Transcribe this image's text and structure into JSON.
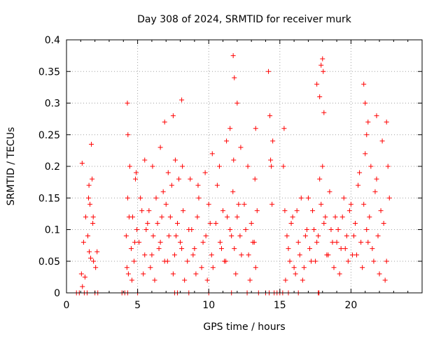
{
  "chart_data": {
    "type": "scatter",
    "title": "Day 308 of 2024, SRMTID for receiver murk",
    "xlabel": "GPS time / hours",
    "ylabel": "SRMTID / TECUs",
    "xlim": [
      0,
      25
    ],
    "ylim": [
      0,
      0.4
    ],
    "xticks": [
      0,
      5,
      10,
      15,
      20
    ],
    "yticks": [
      0,
      0.05,
      0.1,
      0.15,
      0.2,
      0.25,
      0.3,
      0.35,
      0.4
    ],
    "xtick_labels": [
      "0",
      "5",
      "10",
      "15",
      "20"
    ],
    "ytick_labels": [
      "0",
      "0.05",
      "0.1",
      "0.15",
      "0.2",
      "0.25",
      "0.3",
      "0.35",
      "0.4"
    ],
    "grid": true,
    "marker": "+",
    "series_color": "#ff0000",
    "series": [
      {
        "name": "SRMTID",
        "x": [
          1.05,
          1.1,
          1.2,
          1.35,
          1.5,
          1.55,
          1.6,
          1.65,
          1.75,
          1.8,
          1.85,
          1.9,
          2.05,
          2.15,
          1.12,
          1.3,
          1.58,
          1.7,
          1.88,
          4.2,
          4.3,
          4.35,
          4.45,
          4.55,
          4.65,
          4.75,
          4.85,
          4.95,
          5.1,
          5.3,
          5.5,
          5.7,
          5.9,
          6.1,
          6.3,
          6.5,
          6.7,
          6.9,
          7.0,
          7.2,
          7.4,
          7.6,
          7.8,
          8.0,
          8.2,
          8.5,
          8.8,
          9.0,
          9.2,
          9.5,
          9.8,
          10.0,
          10.2,
          10.5,
          10.8,
          11.0,
          11.2,
          11.5,
          11.7,
          11.8,
          12.0,
          12.2,
          12.5,
          12.8,
          13.0,
          13.2,
          13.4,
          4.25,
          4.4,
          4.6,
          4.8,
          5.2,
          5.4,
          5.6,
          5.8,
          6.0,
          6.2,
          6.4,
          6.6,
          6.8,
          7.1,
          7.3,
          7.5,
          7.7,
          7.9,
          8.1,
          8.3,
          8.6,
          8.9,
          9.1,
          9.3,
          9.6,
          9.9,
          10.1,
          10.3,
          10.6,
          10.9,
          11.1,
          11.3,
          11.6,
          11.9,
          12.1,
          12.3,
          12.6,
          12.9,
          13.1,
          13.3,
          4.32,
          4.9,
          5.5,
          6.05,
          6.6,
          7.15,
          7.65,
          8.15,
          8.7,
          9.25,
          9.75,
          10.25,
          10.75,
          11.25,
          11.75,
          12.25,
          12.75,
          13.25,
          4.28,
          6.9,
          7.5,
          8.1,
          11.5,
          11.72,
          11.8,
          12.0,
          13.3,
          14.2,
          14.3,
          14.4,
          14.5,
          15.3,
          15.5,
          15.7,
          15.9,
          16.1,
          16.3,
          16.5,
          16.7,
          16.9,
          17.1,
          17.3,
          17.5,
          17.7,
          17.9,
          18.1,
          18.3,
          18.5,
          18.7,
          18.9,
          19.1,
          19.3,
          19.5,
          19.7,
          19.9,
          20.1,
          20.3,
          20.5,
          20.7,
          20.9,
          21.1,
          21.3,
          21.5,
          21.7,
          21.9,
          22.1,
          22.3,
          22.5,
          22.7,
          15.4,
          15.6,
          15.8,
          16.0,
          16.2,
          16.4,
          16.6,
          16.8,
          17.0,
          17.2,
          17.4,
          17.6,
          17.8,
          18.0,
          18.2,
          18.4,
          18.6,
          18.8,
          19.0,
          19.2,
          19.4,
          19.6,
          19.8,
          20.0,
          20.2,
          20.4,
          20.6,
          20.8,
          21.0,
          21.2,
          21.4,
          21.6,
          21.8,
          22.0,
          22.2,
          22.4,
          22.6,
          14.35,
          14.45,
          15.25,
          15.35,
          17.6,
          17.8,
          17.9,
          18.0,
          18.05,
          18.1,
          20.9,
          21.0,
          21.1,
          21.2,
          21.8,
          22.5,
          0.7,
          0.9,
          1.25,
          1.45,
          2.0,
          2.2,
          3.9,
          4.1,
          4.3,
          5.0,
          7.6,
          7.8,
          8.6,
          10.0,
          11.6,
          12.7,
          13.5,
          14.0,
          14.25,
          14.6,
          14.8,
          15.0,
          15.2,
          15.6,
          16.3,
          17.7,
          17.75
        ],
        "y": [
          0.03,
          0.205,
          0.08,
          0.12,
          0.09,
          0.15,
          0.065,
          0.14,
          0.235,
          0.18,
          0.11,
          0.05,
          0.04,
          0.065,
          0.01,
          0.025,
          0.17,
          0.055,
          0.12,
          0.09,
          0.15,
          0.03,
          0.2,
          0.07,
          0.12,
          0.05,
          0.18,
          0.1,
          0.08,
          0.13,
          0.06,
          0.11,
          0.04,
          0.09,
          0.15,
          0.07,
          0.12,
          0.05,
          0.14,
          0.09,
          0.17,
          0.06,
          0.11,
          0.08,
          0.13,
          0.05,
          0.1,
          0.07,
          0.12,
          0.04,
          0.09,
          0.14,
          0.06,
          0.11,
          0.08,
          0.13,
          0.05,
          0.1,
          0.16,
          0.07,
          0.12,
          0.09,
          0.14,
          0.06,
          0.11,
          0.08,
          0.13,
          0.04,
          0.12,
          0.02,
          0.08,
          0.15,
          0.03,
          0.1,
          0.13,
          0.06,
          0.02,
          0.11,
          0.08,
          0.16,
          0.05,
          0.12,
          0.03,
          0.09,
          0.18,
          0.07,
          0.02,
          0.1,
          0.06,
          0.03,
          0.15,
          0.08,
          0.02,
          0.11,
          0.04,
          0.17,
          0.07,
          0.05,
          0.12,
          0.09,
          0.03,
          0.14,
          0.06,
          0.1,
          0.02,
          0.08,
          0.04,
          0.25,
          0.19,
          0.21,
          0.2,
          0.23,
          0.19,
          0.21,
          0.2,
          0.18,
          0.17,
          0.19,
          0.22,
          0.2,
          0.24,
          0.21,
          0.23,
          0.2,
          0.18,
          0.3,
          0.27,
          0.28,
          0.305,
          0.26,
          0.375,
          0.34,
          0.3,
          0.26,
          0.35,
          0.28,
          0.2,
          0.24,
          0.26,
          0.09,
          0.05,
          0.12,
          0.03,
          0.08,
          0.15,
          0.04,
          0.1,
          0.07,
          0.13,
          0.05,
          0.09,
          0.14,
          0.11,
          0.06,
          0.16,
          0.08,
          0.12,
          0.1,
          0.07,
          0.15,
          0.09,
          0.13,
          0.06,
          0.11,
          0.17,
          0.08,
          0.14,
          0.1,
          0.12,
          0.07,
          0.16,
          0.09,
          0.13,
          0.11,
          0.05,
          0.15,
          0.02,
          0.07,
          0.11,
          0.04,
          0.13,
          0.06,
          0.02,
          0.09,
          0.15,
          0.05,
          0.1,
          0.08,
          0.18,
          0.2,
          0.12,
          0.06,
          0.1,
          0.04,
          0.08,
          0.03,
          0.12,
          0.07,
          0.05,
          0.14,
          0.09,
          0.06,
          0.19,
          0.04,
          0.22,
          0.08,
          0.2,
          0.05,
          0.18,
          0.03,
          0.24,
          0.02,
          0.2,
          0.21,
          0.14,
          0.2,
          0.13,
          0.33,
          0.31,
          0.36,
          0.37,
          0.35,
          0.285,
          0.33,
          0.3,
          0.25,
          0.27,
          0.28,
          0.27,
          0,
          0,
          0,
          0,
          0,
          0,
          0,
          0,
          0,
          0,
          0,
          0,
          0,
          0,
          0,
          0,
          0,
          0,
          0,
          0,
          0,
          0,
          0,
          0,
          0,
          0,
          0
        ]
      }
    ]
  }
}
